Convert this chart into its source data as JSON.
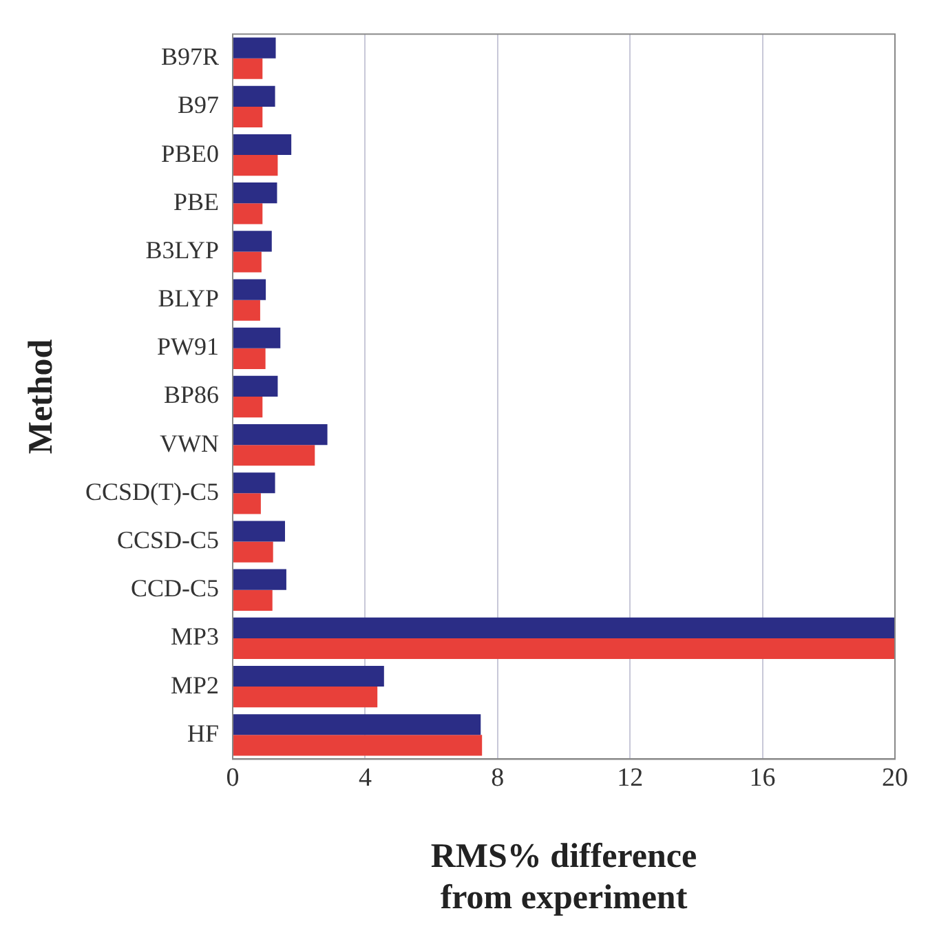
{
  "chart_data": {
    "type": "bar",
    "orientation": "horizontal",
    "xlabel": "RMS% difference from experiment",
    "ylabel": "Method",
    "categories": [
      "B97R",
      "B97",
      "PBE0",
      "PBE",
      "B3LYP",
      "BLYP",
      "PW91",
      "BP86",
      "VWN",
      "CCSD(T)-C5",
      "CCSD-C5",
      "CCD-C5",
      "MP3",
      "MP2",
      "HF"
    ],
    "series": [
      {
        "color": "#2b2d86",
        "values": [
          1.3,
          1.28,
          1.77,
          1.34,
          1.18,
          1.0,
          1.44,
          1.36,
          2.86,
          1.28,
          1.58,
          1.62,
          20,
          4.57,
          7.49
        ]
      },
      {
        "color": "#e8403a",
        "values": [
          0.9,
          0.9,
          1.36,
          0.9,
          0.87,
          0.83,
          0.99,
          0.9,
          2.48,
          0.85,
          1.22,
          1.2,
          20,
          4.37,
          7.53
        ]
      }
    ],
    "xlim": [
      0,
      20
    ],
    "xticks": [
      0,
      4,
      8,
      12,
      16,
      20
    ],
    "grid": "x",
    "legend": false
  }
}
